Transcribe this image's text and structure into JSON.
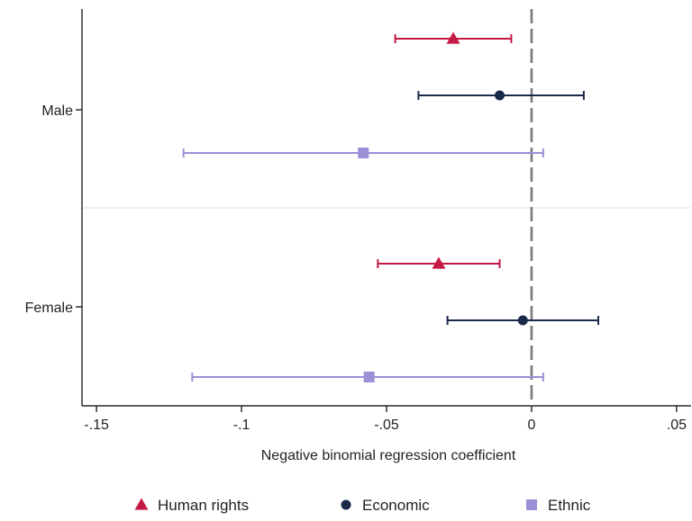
{
  "chart_data": {
    "type": "coefficient-plot",
    "title": "",
    "xlabel": "Negative binomial regression coefficient",
    "ylabel": "",
    "xlim": [
      -0.155,
      0.055
    ],
    "xticks": [
      {
        "value": -0.15,
        "label": "-.15"
      },
      {
        "value": -0.1,
        "label": "-.1"
      },
      {
        "value": -0.05,
        "label": "-.05"
      },
      {
        "value": 0,
        "label": "0"
      },
      {
        "value": 0.05,
        "label": ".05"
      }
    ],
    "reference_line": {
      "x": 0,
      "style": "dashed"
    },
    "groups": [
      {
        "label": "Male",
        "key": "male"
      },
      {
        "label": "Female",
        "key": "female"
      }
    ],
    "series": [
      {
        "name": "Human rights",
        "marker": "triangle",
        "color": "#c41a45",
        "points": [
          {
            "group": "male",
            "estimate": -0.027,
            "ci_low": -0.047,
            "ci_high": -0.007
          },
          {
            "group": "female",
            "estimate": -0.032,
            "ci_low": -0.053,
            "ci_high": -0.011
          }
        ]
      },
      {
        "name": "Economic",
        "marker": "circle",
        "color": "#1b2a4a",
        "points": [
          {
            "group": "male",
            "estimate": -0.011,
            "ci_low": -0.039,
            "ci_high": 0.018
          },
          {
            "group": "female",
            "estimate": -0.003,
            "ci_low": -0.029,
            "ci_high": 0.023
          }
        ]
      },
      {
        "name": "Ethnic",
        "marker": "square",
        "color": "#9b8fd6",
        "points": [
          {
            "group": "male",
            "estimate": -0.058,
            "ci_low": -0.12,
            "ci_high": 0.004
          },
          {
            "group": "female",
            "estimate": -0.056,
            "ci_low": -0.117,
            "ci_high": 0.004
          }
        ]
      }
    ],
    "legend": {
      "position": "bottom"
    }
  }
}
